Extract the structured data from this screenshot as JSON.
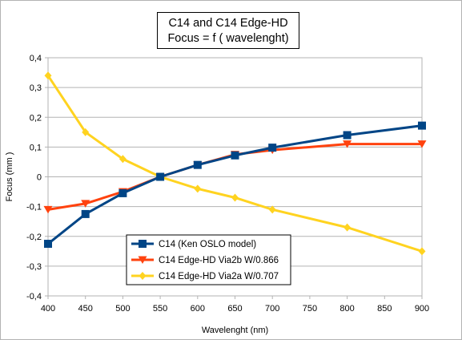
{
  "chart_data": {
    "type": "line",
    "title": "C14 and C14 Edge-HD",
    "subtitle": "Focus = f ( wavelenght)",
    "xlabel": "Wavelenght (nm)",
    "ylabel": "Focus (mm )",
    "x": [
      400,
      450,
      500,
      550,
      600,
      650,
      700,
      750,
      800,
      850,
      900
    ],
    "x_tick_labels": [
      "400",
      "450",
      "500",
      "550",
      "600",
      "650",
      "700",
      "750",
      "800",
      "850",
      "900"
    ],
    "y_tick_labels": [
      "0,4",
      "0,3",
      "0,2",
      "0,1",
      "0",
      "-0,1",
      "-0,2",
      "-0,3",
      "-0,4"
    ],
    "y_ticks": [
      0.4,
      0.3,
      0.2,
      0.1,
      0,
      -0.1,
      -0.2,
      -0.3,
      -0.4
    ],
    "xlim": [
      400,
      900
    ],
    "ylim": [
      -0.4,
      0.4
    ],
    "grid": "horizontal",
    "legend_placement": "bottom-center",
    "series": [
      {
        "name": "C14 (Ken OSLO model)",
        "color": "#004586",
        "marker": "square",
        "x": [
          400,
          450,
          500,
          550,
          600,
          650,
          700,
          800,
          900
        ],
        "values": [
          -0.225,
          -0.125,
          -0.055,
          0.0,
          0.04,
          0.072,
          0.098,
          0.14,
          0.172
        ]
      },
      {
        "name": "C14 Edge-HD Via2b W/0.866",
        "color": "#ff420e",
        "marker": "triangle-down",
        "x": [
          400,
          450,
          500,
          550,
          600,
          650,
          700,
          800,
          900
        ],
        "values": [
          -0.11,
          -0.09,
          -0.05,
          0.0,
          0.04,
          0.075,
          0.09,
          0.11,
          0.11
        ]
      },
      {
        "name": "C14 Edge-HD Via2a W/0.707",
        "color": "#ffd320",
        "marker": "diamond",
        "x": [
          400,
          450,
          500,
          550,
          600,
          650,
          700,
          800,
          900
        ],
        "values": [
          0.34,
          0.15,
          0.06,
          0.0,
          -0.04,
          -0.07,
          -0.11,
          -0.17,
          -0.25
        ]
      }
    ]
  }
}
